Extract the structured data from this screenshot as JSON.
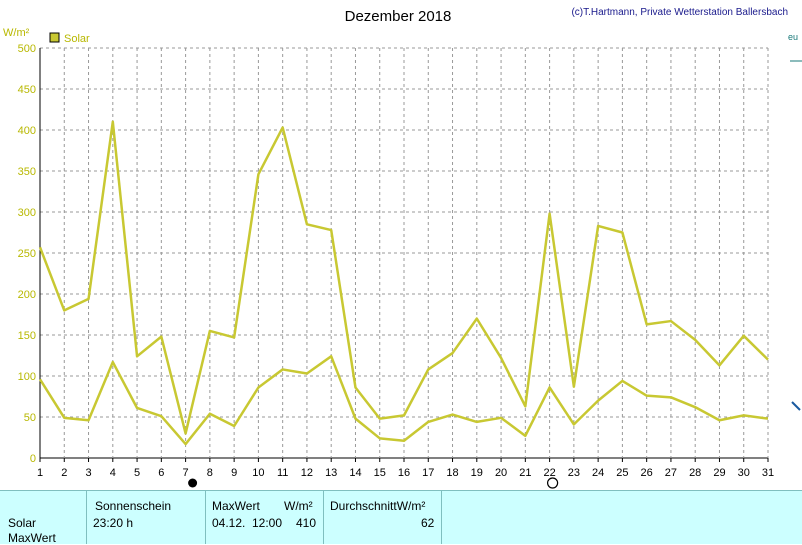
{
  "title": "Dezember 2018",
  "credit": "(c)T.Hartmann, Private Wetterstation Ballersbach",
  "yunit": "W/m²",
  "legend": "Solar",
  "colors": {
    "series": "#c8c832",
    "grid": "#999999",
    "axis": "#000000",
    "panel": "#ccffff"
  },
  "chart_data": {
    "type": "line",
    "title": "Dezember 2018",
    "ylabel": "W/m²",
    "ylim": [
      0,
      500
    ],
    "yticks": [
      0,
      50,
      100,
      150,
      200,
      250,
      300,
      350,
      400,
      450,
      500
    ],
    "x": [
      1,
      2,
      3,
      4,
      5,
      6,
      7,
      8,
      9,
      10,
      11,
      12,
      13,
      14,
      15,
      16,
      17,
      18,
      19,
      20,
      21,
      22,
      23,
      24,
      25,
      26,
      27,
      28,
      29,
      30,
      31
    ],
    "series": [
      {
        "name": "",
        "role": "max",
        "values": [
          257,
          180,
          194,
          410,
          124,
          148,
          30,
          155,
          147,
          346,
          403,
          285,
          278,
          86,
          48,
          52,
          108,
          128,
          170,
          122,
          63,
          298,
          87,
          283,
          275,
          163,
          167,
          144,
          113,
          149,
          120
        ]
      },
      {
        "name": "",
        "role": "average",
        "values": [
          96,
          49,
          46,
          117,
          61,
          51,
          17,
          54,
          39,
          86,
          108,
          103,
          124,
          48,
          24,
          21,
          44,
          53,
          44,
          49,
          27,
          86,
          41,
          70,
          94,
          76,
          74,
          62,
          46,
          52,
          48
        ]
      }
    ],
    "grid": true,
    "legend_position": "top-left",
    "moon_markers": [
      {
        "day": 7,
        "phase": "new-moon"
      },
      {
        "day": 22,
        "phase": "full-moon"
      }
    ]
  },
  "stats": {
    "row_labels": [
      "Solar",
      "MaxWert"
    ],
    "sunshine_header": "Sonnenschein",
    "sunshine_value": "23:20 h",
    "max_header": "MaxWert",
    "max_unit": "W/m²",
    "max_date": "04.12.",
    "max_time": "12:00",
    "max_value": "410",
    "avg_header": "DurchschnittW/m²",
    "avg_value": "62"
  }
}
